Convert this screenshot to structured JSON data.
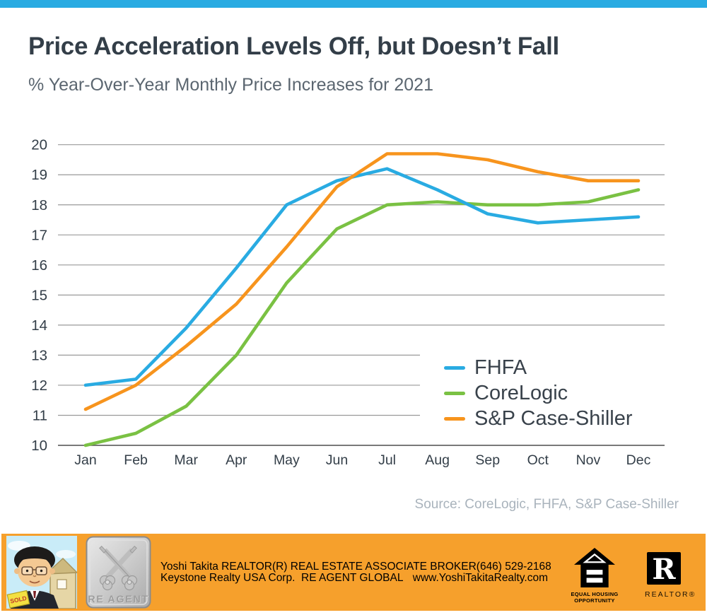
{
  "header": {
    "title": "Price Acceleration Levels Off, but Doesn’t Fall",
    "subtitle": "% Year-Over-Year Monthly Price Increases for 2021"
  },
  "chart_data": {
    "type": "line",
    "title": "Price Acceleration Levels Off, but Doesn’t Fall",
    "subtitle": "% Year-Over-Year Monthly Price Increases for 2021",
    "categories": [
      "Jan",
      "Feb",
      "Mar",
      "Apr",
      "May",
      "Jun",
      "Jul",
      "Aug",
      "Sep",
      "Oct",
      "Nov",
      "Dec"
    ],
    "series": [
      {
        "name": "FHFA",
        "color": "#29ABE2",
        "values": [
          12.0,
          12.2,
          13.9,
          15.9,
          18.0,
          18.8,
          19.2,
          18.5,
          17.7,
          17.4,
          17.5,
          17.6
        ]
      },
      {
        "name": "CoreLogic",
        "color": "#7AC143",
        "values": [
          10.0,
          10.4,
          11.3,
          13.0,
          15.4,
          17.2,
          18.0,
          18.1,
          18.0,
          18.0,
          18.1,
          18.5
        ]
      },
      {
        "name": "S&P Case-Shiller",
        "color": "#F7941D",
        "values": [
          11.2,
          12.0,
          13.3,
          14.7,
          16.6,
          18.6,
          19.7,
          19.7,
          19.5,
          19.1,
          18.8,
          18.8
        ]
      }
    ],
    "ylim": [
      10,
      20
    ],
    "ytick_step": 1,
    "grid": true,
    "legend_position": "inside-right",
    "source": "Source: CoreLogic, FHFA, S&P Case-Shiller"
  },
  "colors": {
    "accent_blue": "#29ABE2",
    "line_green": "#7AC143",
    "line_orange": "#F7941D",
    "footer_orange": "#F6A02C",
    "title_text": "#333E48",
    "subtitle_text": "#5B6670"
  },
  "footer": {
    "agent_line1": "Yoshi Takita REALTOR(R) REAL ESTATE ASSOCIATE BROKER",
    "agent_line2": "Keystone Realty USA Corp.  RE AGENT GLOBAL",
    "phone": "(646) 529-2168",
    "website": "www.YoshiTakitaRealty.com",
    "badge_label": "RE AGENT",
    "portrait_sign_text": "SOLD",
    "equal_housing_line1": "EQUAL HOUSING",
    "equal_housing_line2": "OPPORTUNITY",
    "realtor_r": "R",
    "realtor_label": "REALTOR®"
  }
}
